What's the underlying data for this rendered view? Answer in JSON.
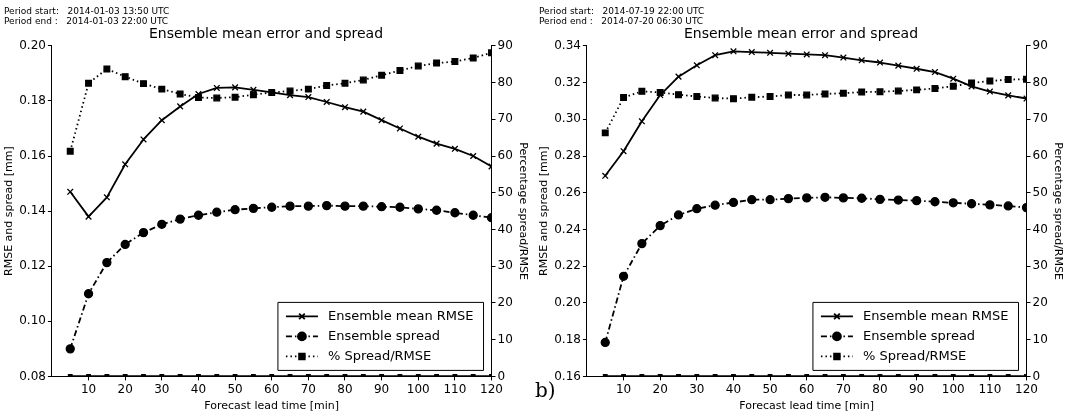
{
  "chart_data": [
    {
      "type": "line",
      "title": "Ensemble mean error and spread",
      "xlabel": "Forecast lead time [min]",
      "ylabel": "RMSE and spread [mm]",
      "y2label": "Percentage spread/RMSE",
      "annotations": [
        "Period start:   2014-01-03 13:50 UTC",
        "Period end :   2014-01-03 22:00 UTC"
      ],
      "x": [
        5,
        10,
        15,
        20,
        25,
        30,
        35,
        40,
        45,
        50,
        55,
        60,
        65,
        70,
        75,
        80,
        85,
        90,
        95,
        100,
        105,
        110,
        115,
        120
      ],
      "series": [
        {
          "name": "Ensemble mean RMSE",
          "color": "#000000",
          "marker": "cross",
          "line_style": "solid",
          "values": [
            0.147,
            0.138,
            0.145,
            0.157,
            0.166,
            0.173,
            0.178,
            0.1825,
            0.1847,
            0.1849,
            0.184,
            0.1831,
            0.1821,
            0.1814,
            0.1796,
            0.1777,
            0.1761,
            0.173,
            0.17,
            0.167,
            0.1645,
            0.1626,
            0.16,
            0.1562
          ]
        },
        {
          "name": "Ensemble spread",
          "color": "#000000",
          "marker": "circle",
          "line_style": "dashed",
          "values": [
            0.09,
            0.11,
            0.1213,
            0.1279,
            0.1322,
            0.1352,
            0.1371,
            0.1385,
            0.1396,
            0.1405,
            0.141,
            0.1414,
            0.1418,
            0.1418,
            0.142,
            0.1418,
            0.1418,
            0.1416,
            0.1414,
            0.1408,
            0.1403,
            0.1394,
            0.1385,
            0.1376
          ]
        },
        {
          "name": "% Spread/RMSE",
          "color": "#000000",
          "marker": "square",
          "line_style": "dotted",
          "axis": "y2",
          "values": [
            61.3,
            79.8,
            83.7,
            81.6,
            79.7,
            78.2,
            76.9,
            75.9,
            75.8,
            76.0,
            76.7,
            77.3,
            77.7,
            78.2,
            79.2,
            79.8,
            80.7,
            82.0,
            83.3,
            84.5,
            85.3,
            85.7,
            86.7,
            88.1
          ]
        },
        {
          "color": "#000000",
          "marker": "square",
          "line_style": "solid",
          "axis": "y2",
          "values": [
            0,
            0,
            0,
            0,
            0,
            0,
            0,
            0,
            0,
            0,
            0,
            0,
            0,
            0,
            0,
            0,
            0,
            0,
            0,
            0,
            0,
            0,
            0,
            0
          ]
        }
      ],
      "xlim": [
        0,
        120
      ],
      "xticks": [
        10,
        20,
        30,
        40,
        50,
        60,
        70,
        80,
        90,
        100,
        110,
        120
      ],
      "ylim": [
        0.08,
        0.2
      ],
      "yticks": [
        {
          "value": 0.08,
          "label": "0.08"
        },
        {
          "value": 0.1,
          "label": "0.10"
        },
        {
          "value": 0.12,
          "label": "0.12"
        },
        {
          "value": 0.14,
          "label": "0.14"
        },
        {
          "value": 0.16,
          "label": "0.16"
        },
        {
          "value": 0.18,
          "label": "0.18"
        },
        {
          "value": 0.2,
          "label": "0.20"
        }
      ],
      "y2lim": [
        0,
        90
      ],
      "y2ticks": [
        0,
        10,
        20,
        30,
        40,
        50,
        60,
        70,
        80,
        90
      ],
      "grid": false,
      "legend": "bottom right"
    },
    {
      "type": "line",
      "title": "Ensemble mean error and spread",
      "xlabel": "Forecast lead time [min]",
      "ylabel": "RMSE and spread [mm]",
      "y2label": "Percentage spread/RMSE",
      "annotations": [
        "Period start:   2014-07-19 22:00 UTC",
        "Period end :   2014-07-20 06:30 UTC",
        "b)"
      ],
      "x": [
        5,
        10,
        15,
        20,
        25,
        30,
        35,
        40,
        45,
        50,
        55,
        60,
        65,
        70,
        75,
        80,
        85,
        90,
        95,
        100,
        105,
        110,
        115,
        120
      ],
      "series": [
        {
          "name": "Ensemble mean RMSE",
          "color": "#000000",
          "marker": "cross",
          "line_style": "solid",
          "values": [
            0.2692,
            0.2826,
            0.2989,
            0.3132,
            0.3232,
            0.3294,
            0.3349,
            0.337,
            0.3366,
            0.3362,
            0.3357,
            0.3353,
            0.3349,
            0.3336,
            0.3321,
            0.3309,
            0.3292,
            0.3275,
            0.3257,
            0.3221,
            0.3179,
            0.3151,
            0.313,
            0.3113
          ]
        },
        {
          "name": "Ensemble spread",
          "color": "#000000",
          "marker": "circle",
          "line_style": "dashed",
          "values": [
            0.1785,
            0.2145,
            0.2323,
            0.2421,
            0.2479,
            0.2513,
            0.2532,
            0.2547,
            0.2562,
            0.2562,
            0.2568,
            0.2572,
            0.2575,
            0.2572,
            0.257,
            0.2564,
            0.256,
            0.2557,
            0.2551,
            0.2545,
            0.254,
            0.2534,
            0.2528,
            0.2519
          ]
        },
        {
          "name": "% Spread/RMSE",
          "color": "#000000",
          "marker": "square",
          "line_style": "dotted",
          "axis": "y2",
          "values": [
            66.3,
            75.9,
            77.6,
            77.3,
            76.7,
            76.2,
            75.8,
            75.6,
            76.0,
            76.2,
            76.6,
            76.6,
            76.9,
            77.1,
            77.4,
            77.5,
            77.7,
            78.0,
            78.4,
            79.0,
            79.9,
            80.4,
            80.8,
            80.9
          ]
        },
        {
          "color": "#000000",
          "marker": "square",
          "line_style": "solid",
          "axis": "y2",
          "values": [
            0,
            0,
            0,
            0,
            0,
            0,
            0,
            0,
            0,
            0,
            0,
            0,
            0,
            0,
            0,
            0,
            0,
            0,
            0,
            0,
            0,
            0,
            0,
            0
          ]
        }
      ],
      "xlim": [
        0,
        120
      ],
      "xticks": [
        10,
        20,
        30,
        40,
        50,
        60,
        70,
        80,
        90,
        100,
        110,
        120
      ],
      "ylim": [
        0.16,
        0.34
      ],
      "yticks": [
        {
          "value": 0.16,
          "label": "0.16"
        },
        {
          "value": 0.18,
          "label": "0.18"
        },
        {
          "value": 0.2,
          "label": "0.20"
        },
        {
          "value": 0.22,
          "label": "0.22"
        },
        {
          "value": 0.24,
          "label": "0.24"
        },
        {
          "value": 0.26,
          "label": "0.26"
        },
        {
          "value": 0.28,
          "label": "0.28"
        },
        {
          "value": 0.3,
          "label": "0.30"
        },
        {
          "value": 0.32,
          "label": "0.32"
        },
        {
          "value": 0.34,
          "label": "0.34"
        }
      ],
      "y2lim": [
        0,
        90
      ],
      "y2ticks": [
        0,
        10,
        20,
        30,
        40,
        50,
        60,
        70,
        80,
        90
      ],
      "grid": false,
      "legend": "bottom right"
    }
  ]
}
